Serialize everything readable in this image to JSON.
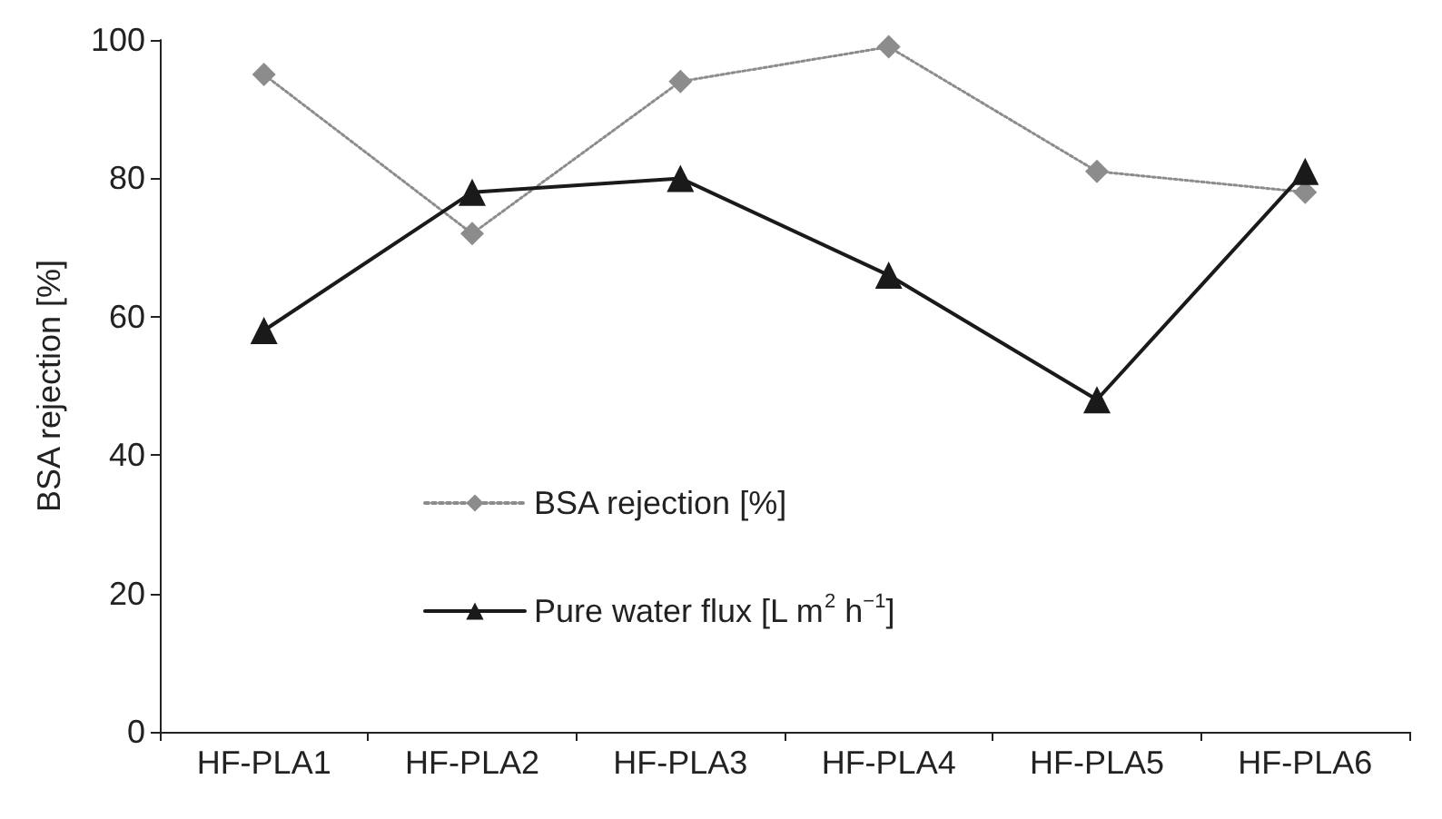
{
  "chart_data": {
    "type": "line",
    "ylabel": "BSA rejection [%]",
    "categories": [
      "HF-PLA1",
      "HF-PLA2",
      "HF-PLA3",
      "HF-PLA4",
      "HF-PLA5",
      "HF-PLA6"
    ],
    "series": [
      {
        "name": "BSA rejection [%]",
        "color": "#8c8c8c",
        "values": [
          95,
          72,
          94,
          99,
          81,
          78
        ],
        "marker": "diamond",
        "line_style": "dotted"
      },
      {
        "name": "Pure water flux [L m$^{2}$ h$^{−1}$]",
        "color": "#1a1a1a",
        "values": [
          58,
          78,
          80,
          66,
          48,
          81
        ],
        "marker": "triangle",
        "line_style": "solid"
      }
    ],
    "ylim": [
      0,
      100
    ],
    "yticks": [
      0,
      20,
      40,
      60,
      80,
      100
    ],
    "grid": false,
    "legend": "center left"
  }
}
